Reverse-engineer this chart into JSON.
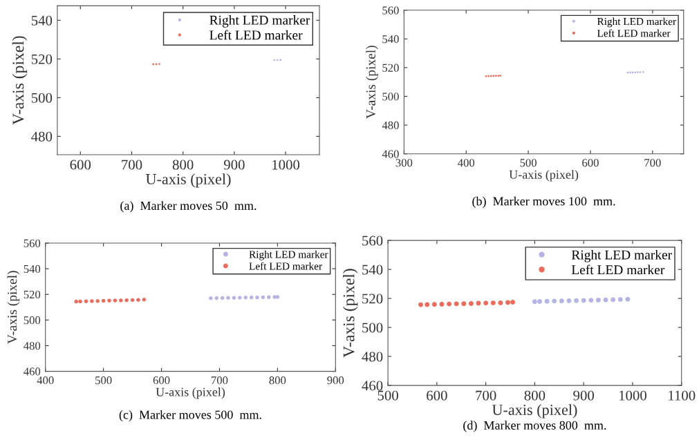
{
  "chart_data": [
    {
      "type": "scatter",
      "xlabel": "U-axis (pixel)",
      "ylabel": "V-axis (pixel)",
      "annotations": [
        "(a)  Marker moves 50  mm."
      ],
      "xlim": [
        555,
        1066
      ],
      "ylim": [
        470.5,
        547.5
      ],
      "xticks": [
        600,
        700,
        800,
        900,
        1000
      ],
      "yticks": [
        480,
        500,
        520,
        540
      ],
      "legend": "top right",
      "marker": "circle",
      "grid": false,
      "series": [
        {
          "name": "Right LED marker",
          "color": "#b4b4e6",
          "x": [
            978,
            984,
            990
          ],
          "values": [
            519.4,
            519.4,
            519.5
          ]
        },
        {
          "name": "Left LED marker",
          "color": "#f06a5a",
          "x": [
            742,
            748,
            754
          ],
          "values": [
            517.3,
            517.3,
            517.4
          ]
        }
      ]
    },
    {
      "type": "scatter",
      "xlabel": "U-axis (pixel)",
      "ylabel": "V-axis (pixel)",
      "annotations": [
        "(b)  Marker moves 100  mm."
      ],
      "xlim": [
        300,
        750
      ],
      "ylim": [
        460,
        560
      ],
      "xticks": [
        300,
        400,
        500,
        600,
        700
      ],
      "yticks": [
        460,
        480,
        500,
        520,
        540,
        560
      ],
      "legend": "top right",
      "marker": "circle",
      "grid": false,
      "series": [
        {
          "name": "Right LED marker",
          "color": "#b4b4e6",
          "x": [
            660,
            664,
            668,
            672,
            676,
            680,
            685
          ],
          "values": [
            516.5,
            516.6,
            516.6,
            516.7,
            516.8,
            516.8,
            516.9
          ]
        },
        {
          "name": "Left LED marker",
          "color": "#f06a5a",
          "x": [
            432,
            436,
            440,
            444,
            448,
            452,
            455
          ],
          "values": [
            514.0,
            514.1,
            514.1,
            514.2,
            514.3,
            514.3,
            514.4
          ]
        }
      ]
    },
    {
      "type": "scatter",
      "xlabel": "U-axis (pixel)",
      "ylabel": "V-axis (pixel)",
      "annotations": [
        "(c)  Marker moves 500  mm."
      ],
      "xlim": [
        400,
        900
      ],
      "ylim": [
        460,
        560
      ],
      "xticks": [
        400,
        500,
        600,
        700,
        800,
        900
      ],
      "yticks": [
        460,
        480,
        500,
        520,
        540,
        560
      ],
      "legend": "top right",
      "marker": "circle",
      "grid": false,
      "series": [
        {
          "name": "Right LED marker",
          "color": "#b4b4e6",
          "x": [
            685,
            695,
            705,
            715,
            725,
            735,
            745,
            755,
            765,
            775,
            785,
            795,
            800
          ],
          "values": [
            517.0,
            517.1,
            517.2,
            517.3,
            517.3,
            517.4,
            517.5,
            517.6,
            517.6,
            517.7,
            517.8,
            517.9,
            518.0
          ]
        },
        {
          "name": "Left LED marker",
          "color": "#f06a5a",
          "x": [
            453,
            460,
            470,
            480,
            490,
            500,
            510,
            520,
            530,
            540,
            550,
            560,
            570
          ],
          "values": [
            514.4,
            514.5,
            514.6,
            514.7,
            514.8,
            515.0,
            515.1,
            515.2,
            515.3,
            515.4,
            515.6,
            515.7,
            515.9
          ]
        }
      ]
    },
    {
      "type": "scatter",
      "xlabel": "U-axis (pixel)",
      "ylabel": "V-axis (pixel)",
      "annotations": [
        "(d)  Marker moves 800  mm."
      ],
      "xlim": [
        500,
        1100
      ],
      "ylim": [
        460,
        560
      ],
      "xticks": [
        500,
        600,
        700,
        800,
        900,
        1000,
        1100
      ],
      "yticks": [
        460,
        480,
        500,
        520,
        540,
        560
      ],
      "legend": "top right",
      "marker": "circle",
      "grid": false,
      "series": [
        {
          "name": "Right LED marker",
          "color": "#b4b4e6",
          "x": [
            800,
            810,
            825,
            840,
            855,
            870,
            885,
            900,
            915,
            930,
            945,
            960,
            975,
            990
          ],
          "values": [
            517.8,
            517.9,
            518.0,
            518.2,
            518.3,
            518.4,
            518.5,
            518.6,
            518.8,
            518.9,
            519.0,
            519.1,
            519.3,
            519.5
          ]
        },
        {
          "name": "Left LED marker",
          "color": "#f06a5a",
          "x": [
            567,
            580,
            595,
            610,
            625,
            640,
            655,
            670,
            685,
            700,
            715,
            730,
            745,
            755
          ],
          "values": [
            515.7,
            515.8,
            515.9,
            516.0,
            516.2,
            516.3,
            516.4,
            516.5,
            516.7,
            516.8,
            516.9,
            517.0,
            517.2,
            517.4
          ]
        }
      ]
    }
  ]
}
